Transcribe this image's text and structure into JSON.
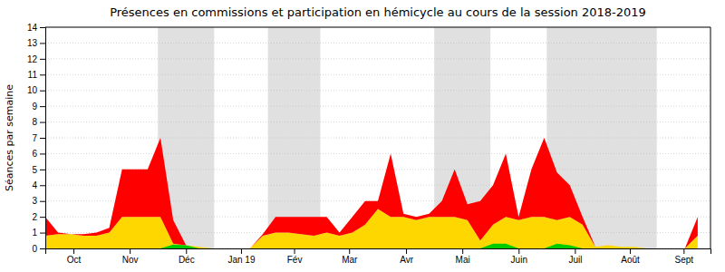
{
  "chart_data": {
    "type": "area",
    "title": "Présences en commissions et participation en hémicycle au cours de la session 2018-2019",
    "y_label": "Séances par semaine",
    "stacked": true,
    "grid": true,
    "x": [
      0,
      1,
      2,
      3,
      4,
      5,
      6,
      7,
      8,
      9,
      10,
      11,
      12,
      13,
      14,
      15,
      16,
      17,
      18,
      19,
      20,
      21,
      22,
      23,
      24,
      25,
      26,
      27,
      28,
      29,
      30,
      31,
      32,
      33,
      34,
      35,
      36,
      37,
      38,
      39,
      40,
      41,
      42,
      43,
      44,
      45,
      46,
      47,
      48,
      49,
      50,
      51
    ],
    "xlim": [
      0,
      52
    ],
    "xticks": [
      {
        "value": 2.2,
        "label": "Oct"
      },
      {
        "value": 6.6,
        "label": "Nov"
      },
      {
        "value": 11.0,
        "label": "Déc"
      },
      {
        "value": 15.3,
        "label": "Jan 19"
      },
      {
        "value": 19.45,
        "label": "Fév"
      },
      {
        "value": 23.75,
        "label": "Mar"
      },
      {
        "value": 28.2,
        "label": "Avr"
      },
      {
        "value": 32.6,
        "label": "Mai"
      },
      {
        "value": 37.0,
        "label": "Juin"
      },
      {
        "value": 41.4,
        "label": "Juil"
      },
      {
        "value": 45.7,
        "label": "Août"
      },
      {
        "value": 49.9,
        "label": "Sept"
      }
    ],
    "ylim": [
      0,
      14
    ],
    "yticks": [
      0,
      1,
      2,
      3,
      4,
      5,
      6,
      7,
      8,
      9,
      10,
      11,
      12,
      13,
      14
    ],
    "shaded_ranges": [
      [
        8.8,
        13.2
      ],
      [
        17.4,
        21.5
      ],
      [
        30.4,
        34.8
      ],
      [
        39.2,
        43.6
      ],
      [
        43.6,
        47.8
      ]
    ],
    "series": [
      {
        "color": "#FFD700",
        "values": [
          0.8,
          0.9,
          0.9,
          0.8,
          0.8,
          1.0,
          2.0,
          2.0,
          2.0,
          2.0,
          0.3,
          0.2,
          0.1,
          0.0,
          0.0,
          0.0,
          0.0,
          0.8,
          1.0,
          1.0,
          0.9,
          0.8,
          1.0,
          0.8,
          1.0,
          1.5,
          2.5,
          2.0,
          2.0,
          1.8,
          2.0,
          2.0,
          2.0,
          1.8,
          0.5,
          1.5,
          2.0,
          1.8,
          2.0,
          2.0,
          1.8,
          2.0,
          1.5,
          0.1,
          0.2,
          0.1,
          0.1,
          0.0,
          0.0,
          0.0,
          0.0,
          0.8
        ]
      },
      {
        "color": "#FF0000",
        "values": [
          1.2,
          0.1,
          0.0,
          0.1,
          0.2,
          0.3,
          3.0,
          3.0,
          3.0,
          5.0,
          1.5,
          0.0,
          0.0,
          0.0,
          0.0,
          0.0,
          0.0,
          0.1,
          1.0,
          1.0,
          1.1,
          1.2,
          1.0,
          0.2,
          1.0,
          1.5,
          0.5,
          4.0,
          0.2,
          0.2,
          0.2,
          1.0,
          3.0,
          1.0,
          2.5,
          2.5,
          4.0,
          0.2,
          3.0,
          5.0,
          3.0,
          2.0,
          0.5,
          0.0,
          0.0,
          0.0,
          0.0,
          0.0,
          0.0,
          0.0,
          0.0,
          1.2
        ]
      },
      {
        "type": "area",
        "color": "#00CC00",
        "values": [
          0.0,
          0.0,
          0.0,
          0.0,
          0.0,
          0.0,
          0.0,
          0.0,
          0.0,
          0.0,
          0.25,
          0.2,
          0.0,
          0.0,
          0.0,
          0.0,
          0.0,
          0.0,
          0.0,
          0.0,
          0.0,
          0.0,
          0.0,
          0.0,
          0.0,
          0.0,
          0.0,
          0.0,
          0.0,
          0.0,
          0.0,
          0.0,
          0.0,
          0.0,
          0.0,
          0.3,
          0.3,
          0.0,
          0.0,
          0.0,
          0.3,
          0.2,
          0.0,
          0.0,
          0.0,
          0.0,
          0.0,
          0.0,
          0.0,
          0.0,
          0.0,
          0.0
        ]
      }
    ]
  }
}
